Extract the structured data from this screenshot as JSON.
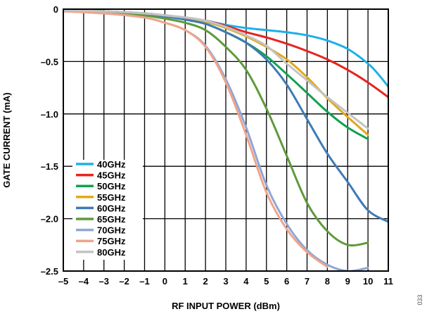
{
  "figure_id": "033",
  "chart_data": {
    "type": "line",
    "title": "",
    "xlabel": "RF INPUT POWER (dBm)",
    "ylabel": "GATE CURRENT (mA)",
    "xlim": [
      -5,
      11
    ],
    "ylim": [
      -2.5,
      0
    ],
    "x_ticks": [
      -5,
      -4,
      -3,
      -2,
      -1,
      0,
      1,
      2,
      3,
      4,
      5,
      6,
      7,
      8,
      9,
      10,
      11
    ],
    "x_tick_labels": [
      "–5",
      "–4",
      "–3",
      "–2",
      "–1",
      "0",
      "1",
      "2",
      "3",
      "4",
      "5",
      "6",
      "7",
      "8",
      "9",
      "10",
      "11"
    ],
    "y_ticks": [
      0,
      -0.5,
      -1.0,
      -1.5,
      -2.0,
      -2.5
    ],
    "y_tick_labels": [
      "0",
      "–0.5",
      "–1.0",
      "–1.5",
      "–2.0",
      "–2.5"
    ],
    "grid": true,
    "legend_position": "bottom-left",
    "series": [
      {
        "name": "40GHz",
        "color": "#1cb0e8",
        "points": [
          [
            -5,
            -0.01
          ],
          [
            -3,
            -0.02
          ],
          [
            -1,
            -0.04
          ],
          [
            0,
            -0.06
          ],
          [
            1,
            -0.08
          ],
          [
            2,
            -0.11
          ],
          [
            3,
            -0.15
          ],
          [
            4,
            -0.18
          ],
          [
            5,
            -0.2
          ],
          [
            6,
            -0.22
          ],
          [
            7,
            -0.25
          ],
          [
            8,
            -0.3
          ],
          [
            9,
            -0.38
          ],
          [
            10,
            -0.52
          ],
          [
            10.5,
            -0.62
          ],
          [
            11,
            -0.74
          ]
        ]
      },
      {
        "name": "45GHz",
        "color": "#e8231e",
        "points": [
          [
            -5,
            -0.01
          ],
          [
            -3,
            -0.02
          ],
          [
            -1,
            -0.04
          ],
          [
            0,
            -0.06
          ],
          [
            1,
            -0.08
          ],
          [
            2,
            -0.11
          ],
          [
            3,
            -0.16
          ],
          [
            4,
            -0.22
          ],
          [
            5,
            -0.27
          ],
          [
            6,
            -0.33
          ],
          [
            7,
            -0.4
          ],
          [
            8,
            -0.48
          ],
          [
            9,
            -0.58
          ],
          [
            10,
            -0.7
          ],
          [
            11,
            -0.84
          ]
        ]
      },
      {
        "name": "50GHz",
        "color": "#12a150",
        "points": [
          [
            -5,
            -0.01
          ],
          [
            -3,
            -0.02
          ],
          [
            -1,
            -0.05
          ],
          [
            0,
            -0.07
          ],
          [
            1,
            -0.1
          ],
          [
            2,
            -0.14
          ],
          [
            3,
            -0.22
          ],
          [
            4,
            -0.32
          ],
          [
            5,
            -0.45
          ],
          [
            6,
            -0.62
          ],
          [
            7,
            -0.8
          ],
          [
            8,
            -0.98
          ],
          [
            9,
            -1.13
          ],
          [
            10,
            -1.24
          ]
        ]
      },
      {
        "name": "55GHz",
        "color": "#e3a81b",
        "points": [
          [
            -5,
            -0.01
          ],
          [
            -3,
            -0.02
          ],
          [
            -1,
            -0.05
          ],
          [
            0,
            -0.07
          ],
          [
            1,
            -0.09
          ],
          [
            2,
            -0.12
          ],
          [
            3,
            -0.18
          ],
          [
            4,
            -0.26
          ],
          [
            5,
            -0.36
          ],
          [
            6,
            -0.48
          ],
          [
            7,
            -0.65
          ],
          [
            8,
            -0.85
          ],
          [
            9,
            -1.03
          ],
          [
            10,
            -1.2
          ]
        ]
      },
      {
        "name": "60GHz",
        "color": "#3d7bb5",
        "points": [
          [
            -5,
            -0.01
          ],
          [
            -3,
            -0.02
          ],
          [
            -1,
            -0.05
          ],
          [
            0,
            -0.07
          ],
          [
            1,
            -0.1
          ],
          [
            2,
            -0.14
          ],
          [
            3,
            -0.22
          ],
          [
            4,
            -0.32
          ],
          [
            5,
            -0.48
          ],
          [
            6,
            -0.72
          ],
          [
            7,
            -1.05
          ],
          [
            8,
            -1.38
          ],
          [
            9,
            -1.65
          ],
          [
            10,
            -1.92
          ],
          [
            11,
            -2.03
          ]
        ]
      },
      {
        "name": "65GHz",
        "color": "#5f9a3a",
        "points": [
          [
            -5,
            -0.01
          ],
          [
            -3,
            -0.02
          ],
          [
            -1,
            -0.06
          ],
          [
            0,
            -0.09
          ],
          [
            1,
            -0.13
          ],
          [
            2,
            -0.2
          ],
          [
            3,
            -0.36
          ],
          [
            4,
            -0.58
          ],
          [
            5,
            -0.95
          ],
          [
            6,
            -1.4
          ],
          [
            7,
            -1.85
          ],
          [
            8,
            -2.12
          ],
          [
            9,
            -2.25
          ],
          [
            10,
            -2.23
          ]
        ]
      },
      {
        "name": "70GHz",
        "color": "#8fa6d6",
        "points": [
          [
            -5,
            -0.02
          ],
          [
            -3,
            -0.04
          ],
          [
            -1,
            -0.08
          ],
          [
            0,
            -0.13
          ],
          [
            1,
            -0.2
          ],
          [
            2,
            -0.35
          ],
          [
            3,
            -0.67
          ],
          [
            4,
            -1.13
          ],
          [
            5,
            -1.68
          ],
          [
            6,
            -2.05
          ],
          [
            7,
            -2.3
          ],
          [
            8,
            -2.44
          ],
          [
            9,
            -2.5
          ],
          [
            10,
            -2.47
          ]
        ]
      },
      {
        "name": "75GHz",
        "color": "#f0a48a",
        "points": [
          [
            -5,
            -0.02
          ],
          [
            -3,
            -0.04
          ],
          [
            -1,
            -0.08
          ],
          [
            0,
            -0.13
          ],
          [
            1,
            -0.2
          ],
          [
            2,
            -0.36
          ],
          [
            3,
            -0.7
          ],
          [
            4,
            -1.2
          ],
          [
            5,
            -1.75
          ],
          [
            6,
            -2.1
          ],
          [
            7,
            -2.32
          ],
          [
            8,
            -2.46
          ]
        ]
      },
      {
        "name": "80GHz",
        "color": "#c3c3c3",
        "points": [
          [
            -5,
            -0.01
          ],
          [
            -3,
            -0.02
          ],
          [
            -1,
            -0.04
          ],
          [
            0,
            -0.06
          ],
          [
            1,
            -0.08
          ],
          [
            2,
            -0.11
          ],
          [
            3,
            -0.17
          ],
          [
            4,
            -0.25
          ],
          [
            5,
            -0.35
          ],
          [
            6,
            -0.52
          ],
          [
            7,
            -0.68
          ],
          [
            8,
            -0.84
          ],
          [
            9,
            -0.99
          ],
          [
            10,
            -1.14
          ]
        ]
      }
    ]
  }
}
